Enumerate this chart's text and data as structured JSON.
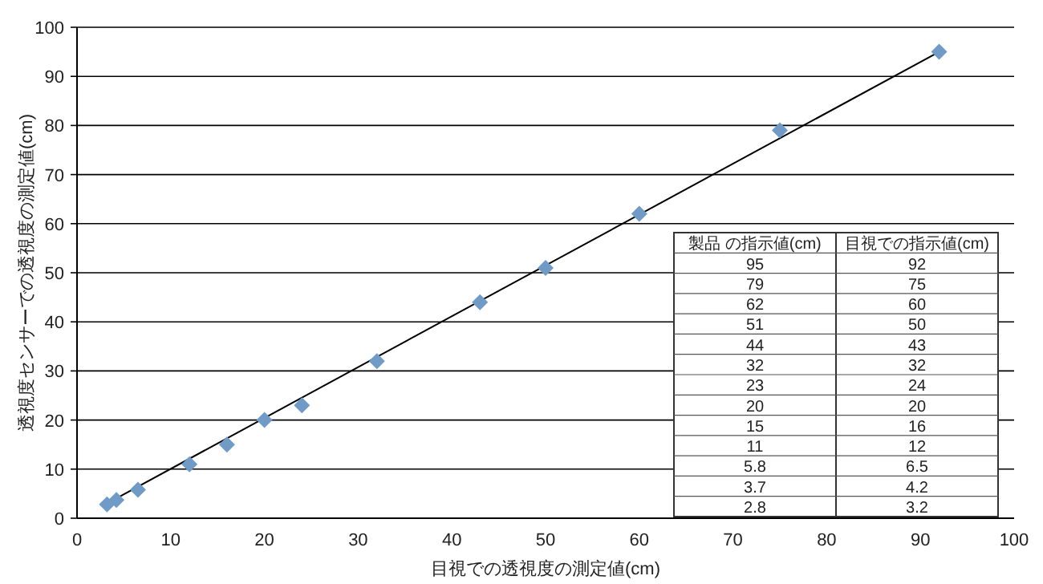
{
  "chart_data": [
    {
      "type": "scatter",
      "xlabel": "目視での透視度の測定値(cm)",
      "ylabel": "透視度センサーでの透視度の測定値(cm)",
      "xlim": [
        0,
        100
      ],
      "ylim": [
        0,
        100
      ],
      "xticks": [
        0,
        10,
        20,
        30,
        40,
        50,
        60,
        70,
        80,
        90,
        100
      ],
      "yticks": [
        0,
        10,
        20,
        30,
        40,
        50,
        60,
        70,
        80,
        90,
        100
      ],
      "grid": "y",
      "series": [
        {
          "type": "scatter",
          "color": "#6f9bc6",
          "marker": "diamond",
          "x": [
            92,
            75,
            60,
            50,
            43,
            32,
            24,
            20,
            16,
            12,
            6.5,
            4.2,
            3.2
          ],
          "values": [
            95,
            79,
            62,
            51,
            44,
            32,
            23,
            20,
            15,
            11,
            5.8,
            3.7,
            2.8
          ]
        },
        {
          "type": "line",
          "marker": "none",
          "color": "#000000",
          "x": [
            2.8,
            92
          ],
          "values": [
            2.6,
            95
          ]
        }
      ]
    },
    {
      "type": "other",
      "categories": [
        "製品 の指示値(cm)",
        "目視での指示値(cm)"
      ],
      "annotations": [
        "95",
        "92",
        "79",
        "75",
        "62",
        "60",
        "51",
        "50",
        "44",
        "43",
        "32",
        "32",
        "23",
        "24",
        "20",
        "20",
        "15",
        "16",
        "11",
        "12",
        "5.8",
        "6.5",
        "3.7",
        "4.2",
        "2.8",
        "3.2"
      ]
    }
  ]
}
